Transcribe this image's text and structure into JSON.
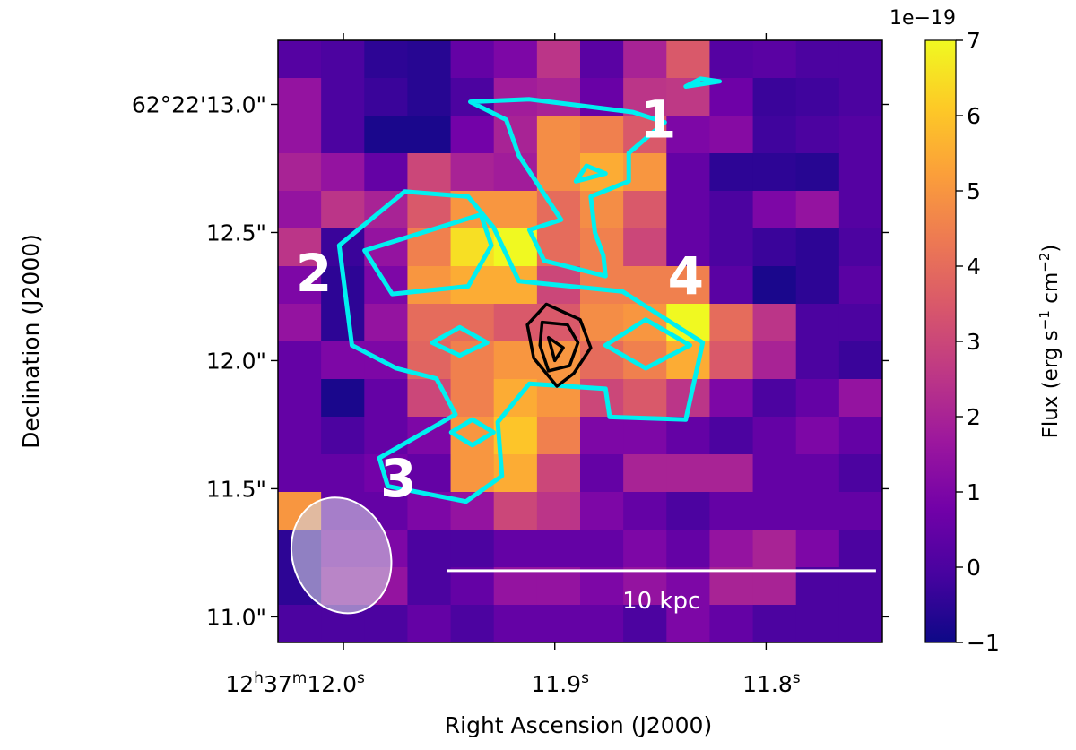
{
  "chart_data": {
    "type": "heatmap",
    "xlabel": "Right Ascension (J2000)",
    "ylabel": "Declination (J2000)",
    "x_ticks": [
      {
        "h": "12",
        "m": "37",
        "s": "12.0"
      },
      {
        "s": "11.9"
      },
      {
        "s": "11.8"
      }
    ],
    "y_ticks": [
      {
        "label": "62°22'13.0\"",
        "value": 13.0
      },
      {
        "label": "12.5\"",
        "value": 12.5
      },
      {
        "label": "12.0\"",
        "value": 12.0
      },
      {
        "label": "11.5\"",
        "value": 11.5
      },
      {
        "label": "11.0\"",
        "value": 11.0
      }
    ],
    "ra_sec_range": [
      12.031,
      11.745
    ],
    "dec_arcsec_range": [
      10.9,
      13.25
    ],
    "colorbar": {
      "label": "Flux (erg s",
      "label_sup1": "−1",
      "label_mid": " cm",
      "label_sup2": "−2",
      "label_end": ")",
      "offset_text": "1e−19",
      "min": -1,
      "max": 7,
      "ticks": [
        "7",
        "6",
        "5",
        "4",
        "3",
        "2",
        "1",
        "0",
        "−1"
      ],
      "tick_values": [
        7,
        6,
        5,
        4,
        3,
        2,
        1,
        0,
        -1
      ],
      "colormap": "plasma",
      "colors": [
        "#0d0887",
        "#46039f",
        "#7201a8",
        "#9c179e",
        "#bd3786",
        "#d8576b",
        "#ed7953",
        "#fb9f3a",
        "#fdca26",
        "#f0f921"
      ]
    },
    "values": [
      [
        0.2,
        0.0,
        -0.5,
        -0.6,
        0.5,
        1.0,
        2.5,
        0.3,
        2.0,
        3.5,
        0.2,
        0.3,
        0.0,
        0.0
      ],
      [
        1.5,
        0.0,
        -0.3,
        -0.6,
        0.0,
        1.8,
        2.0,
        0.6,
        2.5,
        2.6,
        0.7,
        -0.3,
        -0.2,
        0.0
      ],
      [
        1.5,
        0.0,
        -0.8,
        -0.8,
        0.8,
        2.0,
        4.8,
        4.5,
        3.5,
        1.0,
        1.2,
        -0.2,
        0.0,
        0.2
      ],
      [
        2.0,
        1.5,
        0.5,
        3.0,
        2.0,
        1.8,
        4.8,
        5.5,
        5.0,
        0.5,
        -0.5,
        -0.5,
        -0.6,
        0.2
      ],
      [
        1.5,
        2.5,
        2.0,
        3.5,
        5.0,
        5.0,
        4.0,
        4.8,
        3.5,
        0.5,
        0.0,
        1.0,
        1.5,
        0.2
      ],
      [
        2.5,
        -0.3,
        1.5,
        4.5,
        6.5,
        7.0,
        4.0,
        4.5,
        3.0,
        0.5,
        0.0,
        -0.3,
        -0.5,
        0.0
      ],
      [
        1.0,
        -0.5,
        1.0,
        5.0,
        5.5,
        5.5,
        3.0,
        4.5,
        4.5,
        4.5,
        0.3,
        -0.8,
        -0.5,
        0.3
      ],
      [
        1.5,
        -0.5,
        1.5,
        4.0,
        4.0,
        3.5,
        3.5,
        4.8,
        5.0,
        7.0,
        4.0,
        2.5,
        0.0,
        0.0
      ],
      [
        0.5,
        1.0,
        1.0,
        3.8,
        4.5,
        5.0,
        5.0,
        4.0,
        4.5,
        5.5,
        3.5,
        2.0,
        0.0,
        -0.3
      ],
      [
        0.5,
        -0.8,
        0.5,
        3.0,
        4.5,
        5.5,
        5.0,
        3.0,
        3.5,
        2.5,
        1.0,
        0.0,
        0.5,
        1.5
      ],
      [
        0.5,
        0.0,
        0.5,
        1.0,
        5.0,
        6.0,
        4.5,
        1.0,
        1.0,
        0.5,
        0.0,
        0.5,
        1.0,
        0.5
      ],
      [
        0.5,
        0.5,
        0.8,
        0.5,
        5.0,
        5.5,
        3.0,
        0.5,
        2.0,
        2.0,
        2.0,
        0.5,
        0.5,
        0.0
      ],
      [
        5.0,
        0.5,
        0.5,
        1.0,
        1.5,
        3.0,
        2.5,
        1.0,
        0.5,
        0.0,
        0.5,
        0.5,
        0.5,
        0.5
      ],
      [
        -0.5,
        1.0,
        1.0,
        0.0,
        0.0,
        0.5,
        0.5,
        0.5,
        1.0,
        0.5,
        1.5,
        2.0,
        1.0,
        0.0
      ],
      [
        -0.5,
        1.5,
        1.5,
        0.0,
        0.5,
        1.5,
        1.5,
        1.0,
        1.5,
        1.0,
        2.0,
        2.0,
        0.0,
        0.0
      ],
      [
        0.0,
        0.0,
        0.0,
        0.5,
        0.0,
        0.5,
        0.5,
        0.5,
        0.0,
        1.0,
        0.5,
        0.0,
        0.0,
        0.0
      ]
    ],
    "contours_cyan": [
      [
        [
          11.897,
          12.55
        ],
        [
          11.917,
          12.8
        ],
        [
          11.923,
          12.94
        ],
        [
          11.94,
          13.01
        ],
        [
          11.912,
          13.02
        ],
        [
          11.863,
          12.97
        ],
        [
          11.848,
          12.93
        ],
        [
          11.865,
          12.81
        ],
        [
          11.865,
          12.7
        ],
        [
          11.883,
          12.64
        ],
        [
          11.881,
          12.5
        ],
        [
          11.877,
          12.41
        ],
        [
          11.876,
          12.33
        ],
        [
          11.905,
          12.39
        ],
        [
          11.912,
          12.51
        ],
        [
          11.897,
          12.55
        ]
      ],
      [
        [
          12.002,
          12.45
        ],
        [
          11.996,
          12.06
        ],
        [
          11.975,
          11.97
        ],
        [
          11.956,
          11.93
        ],
        [
          11.947,
          11.79
        ],
        [
          11.983,
          11.62
        ],
        [
          11.979,
          11.51
        ],
        [
          11.942,
          11.45
        ],
        [
          11.925,
          11.55
        ],
        [
          11.927,
          11.76
        ],
        [
          11.912,
          11.91
        ],
        [
          11.876,
          11.89
        ],
        [
          11.874,
          11.78
        ],
        [
          11.838,
          11.77
        ],
        [
          11.83,
          12.07
        ],
        [
          11.868,
          12.27
        ],
        [
          11.917,
          12.31
        ],
        [
          11.929,
          12.52
        ],
        [
          11.941,
          12.64
        ],
        [
          11.971,
          12.66
        ],
        [
          12.002,
          12.45
        ]
      ],
      [
        [
          11.99,
          12.43
        ],
        [
          11.935,
          12.57
        ],
        [
          11.93,
          12.45
        ],
        [
          11.941,
          12.29
        ],
        [
          11.977,
          12.26
        ],
        [
          11.99,
          12.43
        ]
      ],
      [
        [
          11.876,
          12.06
        ],
        [
          11.857,
          12.16
        ],
        [
          11.836,
          12.06
        ],
        [
          11.857,
          11.97
        ],
        [
          11.876,
          12.06
        ]
      ],
      [
        [
          11.885,
          12.76
        ],
        [
          11.876,
          12.73
        ],
        [
          11.89,
          12.7
        ],
        [
          11.885,
          12.76
        ]
      ],
      [
        [
          11.831,
          13.1
        ],
        [
          11.822,
          13.09
        ],
        [
          11.838,
          13.07
        ],
        [
          11.831,
          13.1
        ]
      ],
      [
        [
          11.958,
          12.07
        ],
        [
          11.945,
          12.13
        ],
        [
          11.932,
          12.07
        ],
        [
          11.945,
          12.02
        ],
        [
          11.958,
          12.07
        ]
      ],
      [
        [
          11.949,
          11.72
        ],
        [
          11.939,
          11.77
        ],
        [
          11.929,
          11.72
        ],
        [
          11.939,
          11.67
        ],
        [
          11.949,
          11.72
        ]
      ]
    ],
    "contours_black": [
      [
        [
          11.904,
          12.22
        ],
        [
          11.913,
          12.14
        ],
        [
          11.91,
          12.01
        ],
        [
          11.899,
          11.9
        ],
        [
          11.891,
          11.95
        ],
        [
          11.883,
          12.05
        ],
        [
          11.888,
          12.16
        ],
        [
          11.904,
          12.22
        ]
      ],
      [
        [
          11.906,
          12.15
        ],
        [
          11.907,
          12.06
        ],
        [
          11.903,
          11.96
        ],
        [
          11.893,
          11.98
        ],
        [
          11.889,
          12.07
        ],
        [
          11.894,
          12.14
        ],
        [
          11.906,
          12.15
        ]
      ],
      [
        [
          11.903,
          12.09
        ],
        [
          11.9,
          12.0
        ],
        [
          11.896,
          12.05
        ],
        [
          11.903,
          12.09
        ]
      ]
    ],
    "annotations": [
      {
        "text": "1",
        "ra": 11.851,
        "dec": 12.87
      },
      {
        "text": "2",
        "ra": 12.014,
        "dec": 12.27
      },
      {
        "text": "3",
        "ra": 11.974,
        "dec": 11.47
      },
      {
        "text": "4",
        "ra": 11.838,
        "dec": 12.26
      }
    ],
    "beam": {
      "ra": 12.001,
      "dec": 11.24,
      "semi_major_arcsec": 0.23,
      "semi_minor_arcsec": 0.19,
      "angle_deg": 70
    },
    "scale_bar": {
      "label": "10 kpc",
      "ra_start": 11.951,
      "ra_end": 11.748,
      "dec": 11.18
    }
  }
}
